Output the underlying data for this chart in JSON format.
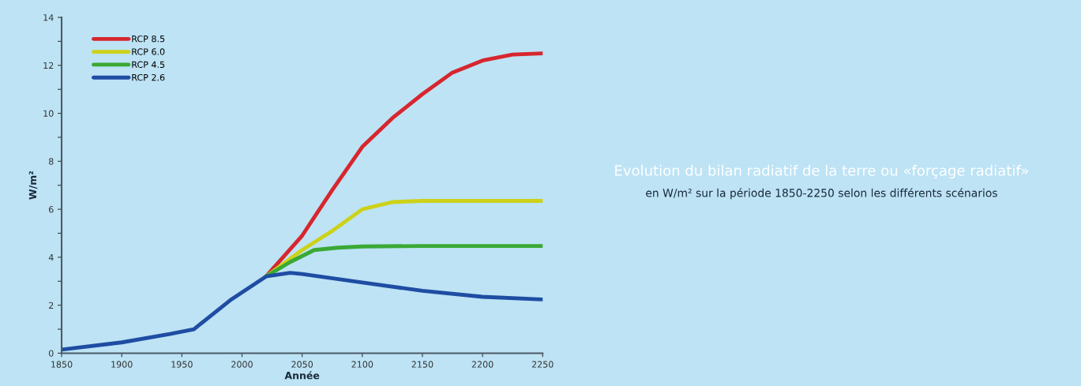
{
  "chart_data": {
    "type": "line",
    "title": "Evolution du bilan radiatif de la terre ou «forçage radiatif»",
    "subtitle": "en W/m² sur la période 1850-2250 selon les différents scénarios",
    "xlabel": "Année",
    "ylabel": "W/m²",
    "series": [
      {
        "name": "RCP 8.5",
        "color": "#d7262e",
        "x": [
          2020,
          2050,
          2075,
          2100,
          2125,
          2150,
          2175,
          2200,
          2225,
          2250
        ],
        "values": [
          3.2,
          4.9,
          6.8,
          8.6,
          9.8,
          10.8,
          11.7,
          12.2,
          12.45,
          12.5
        ]
      },
      {
        "name": "RCP 6.0",
        "color": "#cdd21a",
        "x": [
          2020,
          2050,
          2075,
          2100,
          2125,
          2150,
          2200,
          2250
        ],
        "values": [
          3.2,
          4.3,
          5.1,
          6.0,
          6.3,
          6.35,
          6.35,
          6.35
        ]
      },
      {
        "name": "RCP 4.5",
        "color": "#3aa935",
        "x": [
          2020,
          2040,
          2060,
          2080,
          2100,
          2150,
          2200,
          2250
        ],
        "values": [
          3.2,
          3.8,
          4.3,
          4.4,
          4.45,
          4.47,
          4.47,
          4.47
        ]
      },
      {
        "name": "RCP 2.6",
        "color": "#1f4da3",
        "x": [
          1850,
          1900,
          1940,
          1960,
          1990,
          2020,
          2040,
          2050,
          2100,
          2150,
          2200,
          2250
        ],
        "values": [
          0.15,
          0.45,
          0.8,
          1.0,
          2.2,
          3.2,
          3.35,
          3.3,
          2.95,
          2.6,
          2.35,
          2.24
        ]
      }
    ],
    "xlim": [
      1850,
      2250
    ],
    "ylim": [
      0,
      14
    ],
    "xticks": [
      1850,
      1900,
      1950,
      2000,
      2050,
      2100,
      2150,
      2200,
      2250
    ],
    "yticks": [
      0,
      {
        "value": 1,
        "label": null
      },
      2,
      {
        "value": 3,
        "label": null
      },
      4,
      {
        "value": 5,
        "label": null
      },
      6,
      {
        "value": 7,
        "label": null
      },
      8,
      {
        "value": 9,
        "label": null
      },
      10,
      {
        "value": 11,
        "label": null
      },
      12,
      {
        "value": 13,
        "label": null
      },
      14
    ],
    "grid": false,
    "legend": "top left",
    "line_style": "solid",
    "marker": "none"
  }
}
